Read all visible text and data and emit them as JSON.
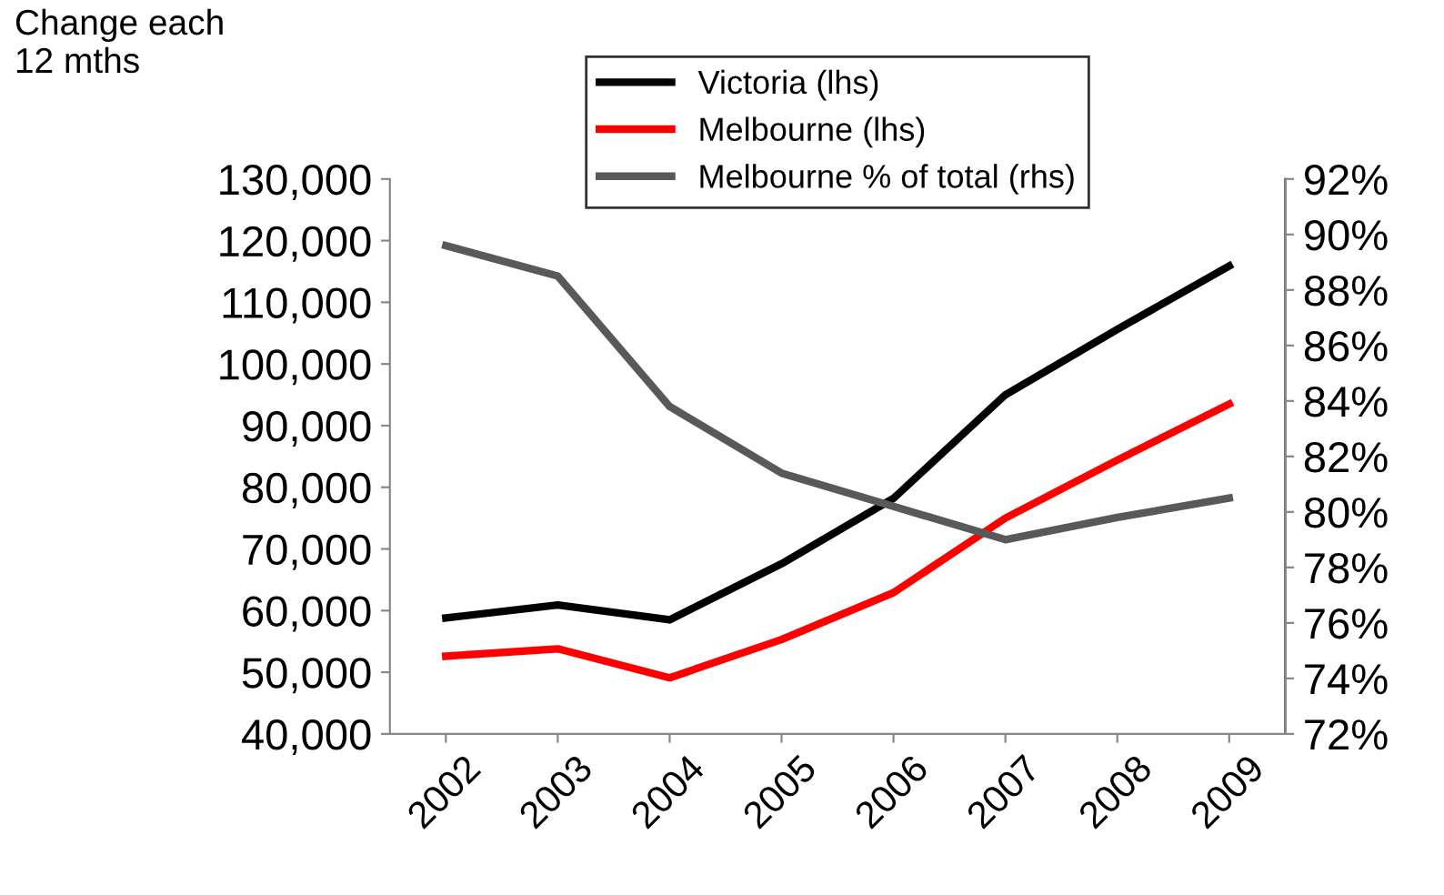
{
  "chart_data": {
    "type": "line",
    "ylabel": "Change each\n12 mths",
    "categories": [
      "2002",
      "2003",
      "2004",
      "2005",
      "2006",
      "2007",
      "2008",
      "2009"
    ],
    "series": [
      {
        "name": "Victoria (lhs)",
        "color": "#000000",
        "values": [
          58800,
          60900,
          58500,
          67600,
          78200,
          95000,
          105600,
          115900
        ]
      },
      {
        "name": "Melbourne (lhs)",
        "color": "#ff0000",
        "values": [
          52600,
          53800,
          49100,
          55300,
          62900,
          75000,
          84400,
          93500
        ]
      },
      {
        "name": "Melbourne % of total (rhs)",
        "color": "#595959",
        "axis": "y2",
        "values": [
          89.6,
          88.5,
          83.8,
          81.4,
          80.2,
          79.0,
          79.8,
          80.5
        ]
      }
    ],
    "ylim": [
      40000,
      130000
    ],
    "yticks": [
      {
        "value": 40000,
        "label": "40,000"
      },
      {
        "value": 50000,
        "label": "50,000"
      },
      {
        "value": 60000,
        "label": "60,000"
      },
      {
        "value": 70000,
        "label": "70,000"
      },
      {
        "value": 80000,
        "label": "80,000"
      },
      {
        "value": 90000,
        "label": "90,000"
      },
      {
        "value": 100000,
        "label": "100,000"
      },
      {
        "value": 110000,
        "label": "110,000"
      },
      {
        "value": 120000,
        "label": "120,000"
      },
      {
        "value": 130000,
        "label": "130,000"
      }
    ],
    "y2lim": [
      72,
      92
    ],
    "y2ticks": [
      {
        "value": 72,
        "label": "72%"
      },
      {
        "value": 74,
        "label": "74%"
      },
      {
        "value": 76,
        "label": "76%"
      },
      {
        "value": 78,
        "label": "78%"
      },
      {
        "value": 80,
        "label": "80%"
      },
      {
        "value": 82,
        "label": "82%"
      },
      {
        "value": 84,
        "label": "84%"
      },
      {
        "value": 86,
        "label": "86%"
      },
      {
        "value": 88,
        "label": "88%"
      },
      {
        "value": 90,
        "label": "90%"
      },
      {
        "value": 92,
        "label": "92%"
      }
    ],
    "legend": "top",
    "grid": false,
    "marker": "none",
    "line_style": "solid"
  }
}
